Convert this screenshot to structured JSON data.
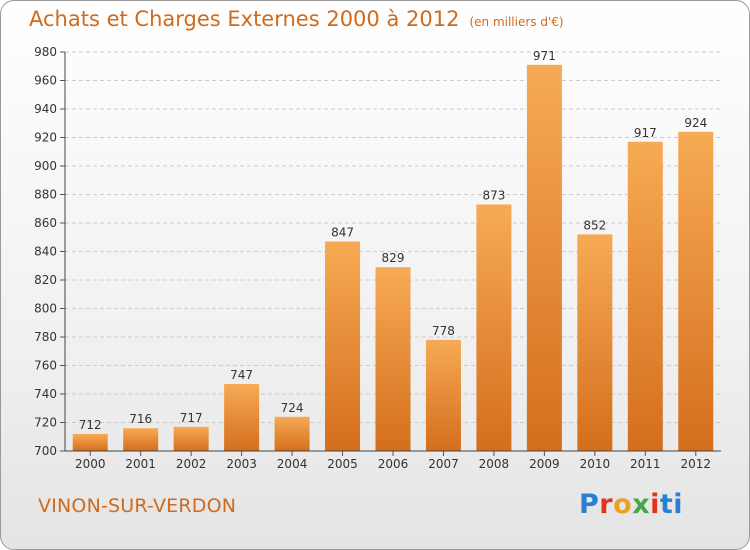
{
  "header": {
    "title": "Achats et Charges Externes 2000 à 2012",
    "subtitle": "(en milliers d'€)"
  },
  "footer": {
    "city": "VINON-SUR-VERDON",
    "brand": [
      "P",
      "r",
      "o",
      "x",
      "i",
      "ti"
    ]
  },
  "colors": {
    "bar_top": "#f7aa55",
    "bar_bottom": "#d46e1c",
    "text_accent": "#d06a1c"
  },
  "chart_data": {
    "type": "bar",
    "categories": [
      "2000",
      "2001",
      "2002",
      "2003",
      "2004",
      "2005",
      "2006",
      "2007",
      "2008",
      "2009",
      "2010",
      "2011",
      "2012"
    ],
    "values": [
      712,
      716,
      717,
      747,
      724,
      847,
      829,
      778,
      873,
      971,
      852,
      917,
      924
    ],
    "title": "Achats et Charges Externes 2000 à 2012",
    "subtitle": "(en milliers d'€)",
    "ylim": [
      700,
      980
    ],
    "yticks": [
      700,
      720,
      740,
      760,
      780,
      800,
      820,
      840,
      860,
      880,
      900,
      920,
      940,
      960,
      980
    ],
    "grid": true
  }
}
